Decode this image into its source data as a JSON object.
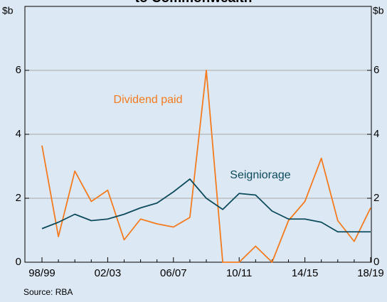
{
  "chart_data": {
    "type": "line",
    "title": "to Commonwealth",
    "y_label": "$b",
    "y2_label": "$b",
    "categories": [
      "98/99",
      null,
      null,
      null,
      "02/03",
      null,
      null,
      null,
      "06/07",
      null,
      null,
      null,
      "10/11",
      null,
      null,
      null,
      "14/15",
      null,
      null,
      null,
      "18/19"
    ],
    "series": [
      {
        "name": "Dividend paid",
        "color": "#f47b20",
        "values": [
          3.65,
          0.8,
          2.85,
          1.9,
          2.25,
          0.7,
          1.35,
          1.2,
          1.1,
          1.4,
          6.0,
          0,
          0,
          0.5,
          0,
          1.3,
          1.9,
          3.25,
          1.3,
          0.65,
          1.7
        ]
      },
      {
        "name": "Seigniorage",
        "color": "#0d4b5c",
        "values": [
          1.05,
          1.25,
          1.5,
          1.3,
          1.35,
          1.5,
          1.7,
          1.85,
          2.2,
          2.6,
          2.0,
          1.65,
          2.15,
          2.1,
          1.6,
          1.35,
          1.35,
          1.25,
          0.95,
          0.95,
          0.95
        ]
      }
    ],
    "ylim": [
      0,
      8
    ],
    "yticks": [
      0,
      2,
      4,
      6
    ],
    "y2lim": [
      0,
      8
    ],
    "y2ticks": [
      0,
      2,
      4,
      6
    ],
    "grid": true,
    "source": "Source:   RBA"
  }
}
